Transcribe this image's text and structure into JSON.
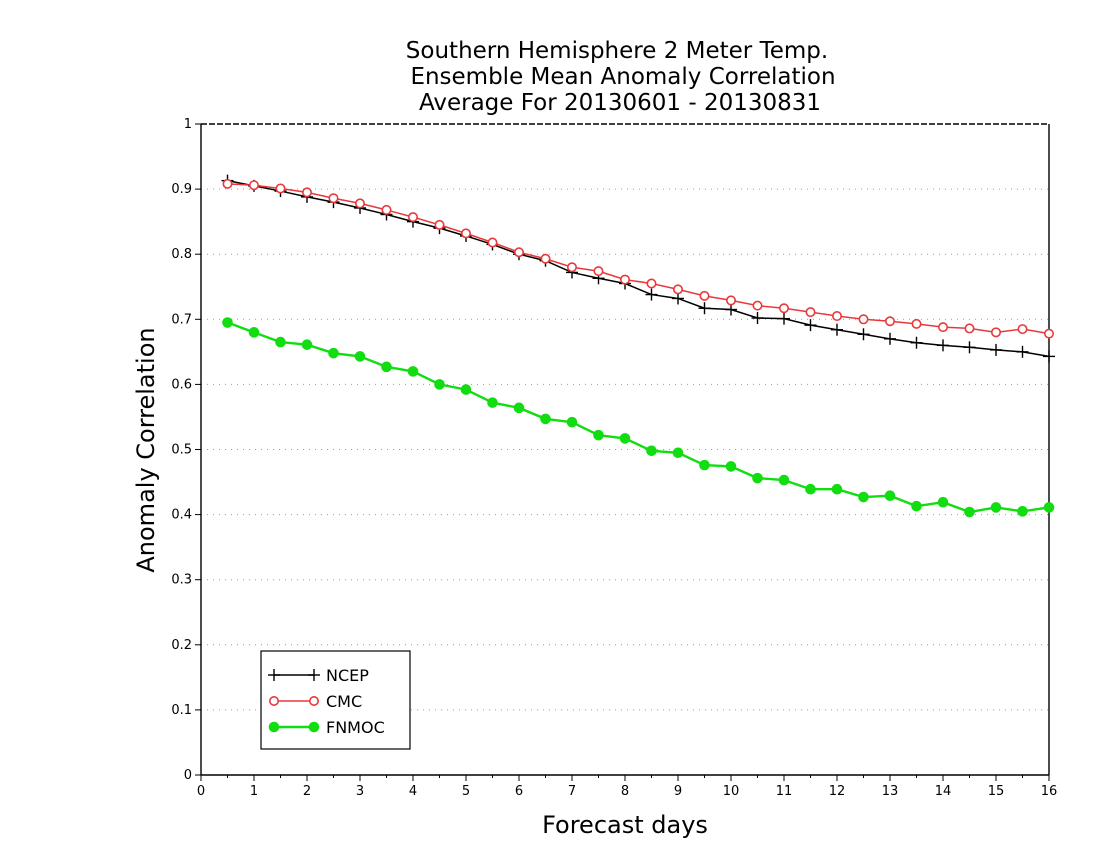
{
  "chart_data": {
    "type": "line",
    "title_lines": [
      "Southern Hemisphere 2 Meter Temp.",
      "Ensemble Mean Anomaly Correlation",
      "Average For 20130601 - 20130831"
    ],
    "xlabel": "Forecast days",
    "ylabel": "Anomaly Correlation",
    "xlim": [
      0,
      16
    ],
    "ylim": [
      0,
      1
    ],
    "x_ticks": [
      "0",
      "1",
      "2",
      "3",
      "4",
      "5",
      "6",
      "7",
      "8",
      "9",
      "10",
      "11",
      "12",
      "13",
      "14",
      "15",
      "16"
    ],
    "y_ticks": [
      "0",
      "0.1",
      "0.2",
      "0.3",
      "0.4",
      "0.5",
      "0.6",
      "0.7",
      "0.8",
      "0.9",
      "1"
    ],
    "grid": "horizontal dotted",
    "legend": "bottom-left",
    "x": [
      0.5,
      1,
      1.5,
      2,
      2.5,
      3,
      3.5,
      4,
      4.5,
      5,
      5.5,
      6,
      6.5,
      7,
      7.5,
      8,
      8.5,
      9,
      9.5,
      10,
      10.5,
      11,
      11.5,
      12,
      12.5,
      13,
      13.5,
      14,
      14.5,
      15,
      15.5,
      16
    ],
    "series": [
      {
        "name": "NCEP",
        "color": "#000000",
        "marker": "plus",
        "values": [
          0.913,
          0.905,
          0.897,
          0.888,
          0.88,
          0.871,
          0.861,
          0.85,
          0.84,
          0.828,
          0.815,
          0.8,
          0.79,
          0.772,
          0.763,
          0.755,
          0.738,
          0.732,
          0.717,
          0.715,
          0.702,
          0.701,
          0.691,
          0.684,
          0.677,
          0.67,
          0.664,
          0.66,
          0.657,
          0.653,
          0.65,
          0.643
        ]
      },
      {
        "name": "CMC",
        "color": "#e8393a",
        "marker": "open-circle",
        "values": [
          0.908,
          0.906,
          0.901,
          0.895,
          0.886,
          0.878,
          0.868,
          0.857,
          0.845,
          0.832,
          0.818,
          0.803,
          0.793,
          0.78,
          0.774,
          0.761,
          0.755,
          0.746,
          0.736,
          0.729,
          0.721,
          0.717,
          0.711,
          0.705,
          0.7,
          0.697,
          0.693,
          0.688,
          0.686,
          0.68,
          0.685,
          0.678
        ]
      },
      {
        "name": "FNMOC",
        "color": "#11dd11",
        "marker": "filled-circle",
        "values": [
          0.695,
          0.68,
          0.665,
          0.661,
          0.648,
          0.643,
          0.627,
          0.62,
          0.6,
          0.592,
          0.572,
          0.564,
          0.547,
          0.542,
          0.522,
          0.517,
          0.498,
          0.495,
          0.476,
          0.474,
          0.456,
          0.453,
          0.439,
          0.439,
          0.427,
          0.429,
          0.413,
          0.419,
          0.404,
          0.411,
          0.405,
          0.411
        ]
      }
    ]
  }
}
